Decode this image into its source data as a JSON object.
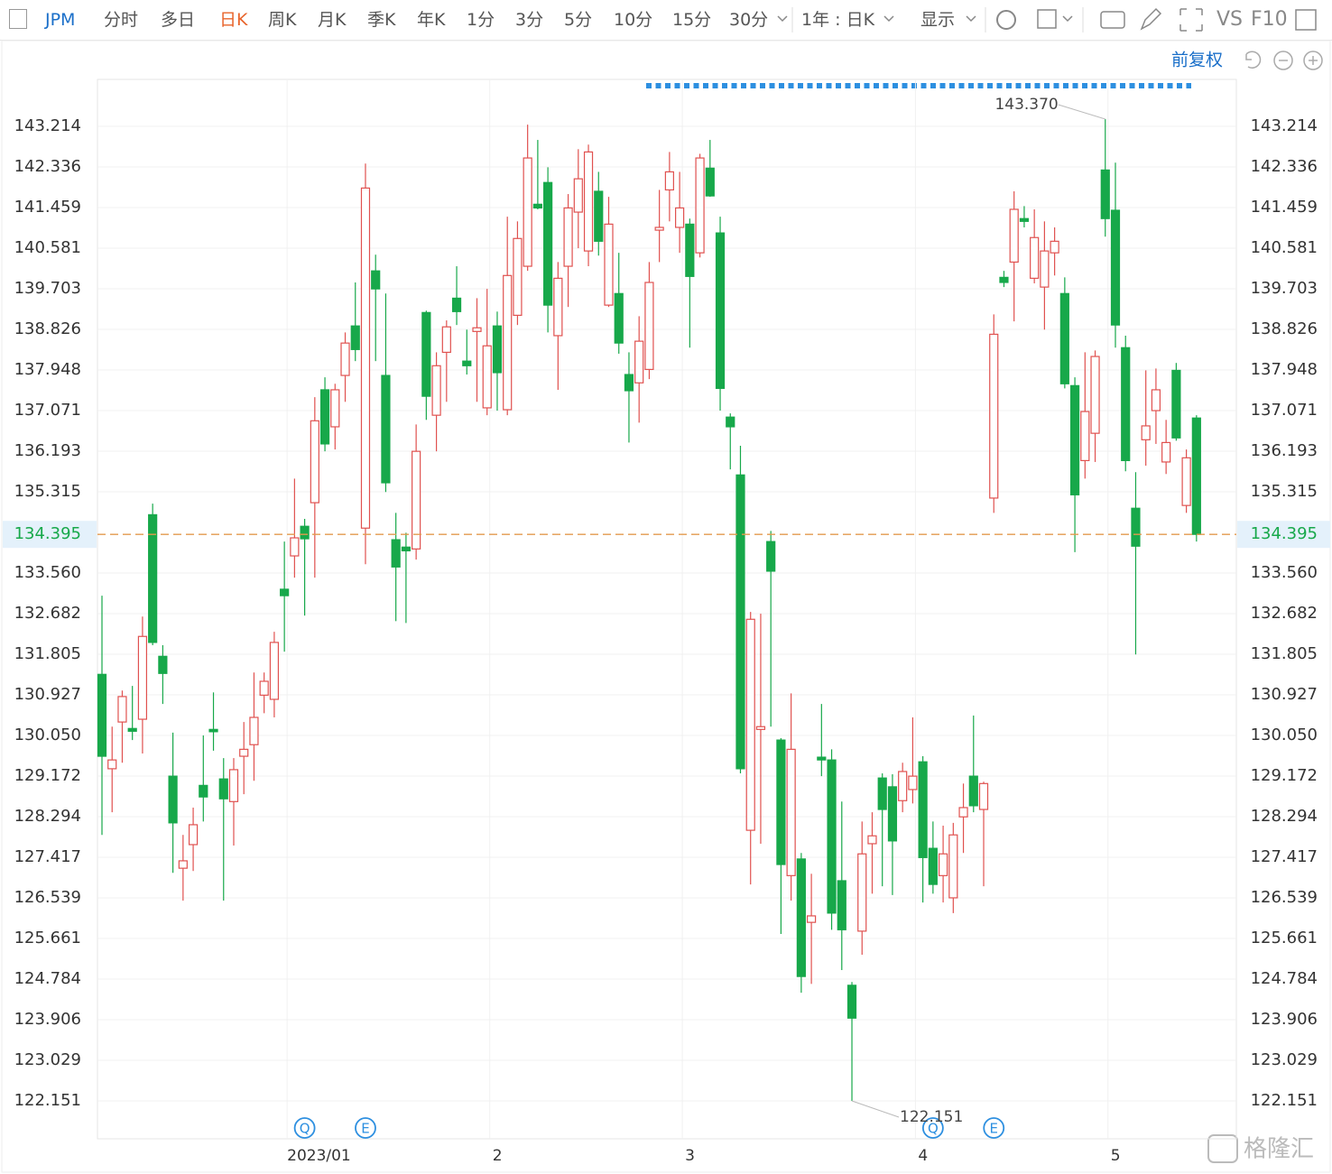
{
  "toolbar": {
    "symbol": "JPM",
    "periods": [
      "分时",
      "多日",
      "日K",
      "周K",
      "月K",
      "季K",
      "年K",
      "1分",
      "3分",
      "5分",
      "10分",
      "15分",
      "30分"
    ],
    "active_period_index": 2,
    "range": "1年 : 日K",
    "display": "显示",
    "compare": "VS",
    "f10": "F10"
  },
  "adjust": "前复权",
  "watermark": "格隆汇",
  "chart_data": {
    "type": "candlestick",
    "categories": [
      null,
      null,
      null,
      null,
      null,
      null,
      null,
      null,
      null,
      null,
      null,
      null,
      null,
      null,
      null,
      null,
      null,
      null,
      "2023/01",
      null,
      null,
      null,
      null,
      null,
      null,
      null,
      null,
      null,
      null,
      null,
      null,
      null,
      null,
      null,
      null,
      null,
      null,
      null,
      "2",
      null,
      null,
      null,
      null,
      null,
      null,
      null,
      null,
      null,
      null,
      null,
      null,
      null,
      null,
      null,
      null,
      null,
      null,
      "3",
      null,
      null,
      null,
      null,
      null,
      null,
      null,
      null,
      null,
      null,
      null,
      null,
      null,
      null,
      null,
      null,
      null,
      null,
      null,
      null,
      null,
      null,
      "4",
      null,
      null,
      null,
      null,
      null,
      null,
      null,
      null,
      null,
      null,
      null,
      null,
      null,
      null,
      null,
      null,
      null,
      null,
      "5",
      null,
      null,
      null,
      null,
      null,
      null,
      null,
      null,
      null
    ],
    "events": [
      null,
      null,
      null,
      null,
      null,
      null,
      null,
      null,
      null,
      null,
      null,
      null,
      null,
      null,
      null,
      null,
      null,
      null,
      null,
      null,
      "Q",
      null,
      null,
      null,
      null,
      null,
      "E",
      null,
      null,
      null,
      null,
      null,
      null,
      null,
      null,
      null,
      null,
      null,
      null,
      null,
      null,
      null,
      null,
      null,
      null,
      null,
      null,
      null,
      null,
      null,
      null,
      null,
      null,
      null,
      null,
      null,
      null,
      null,
      null,
      null,
      null,
      null,
      null,
      null,
      null,
      null,
      null,
      null,
      null,
      null,
      null,
      null,
      null,
      null,
      null,
      null,
      null,
      null,
      null,
      null,
      null,
      null,
      "Q",
      null,
      null,
      null,
      null,
      null,
      "E",
      null,
      null,
      null,
      null,
      null,
      null,
      null,
      null,
      null,
      null,
      null,
      null,
      null,
      null,
      null,
      null,
      null,
      null,
      null,
      null
    ],
    "ohlc": [
      [
        131.37,
        133.07,
        127.9,
        129.6
      ],
      [
        129.33,
        130.24,
        128.39,
        129.52
      ],
      [
        130.34,
        131.02,
        129.46,
        130.89
      ],
      [
        130.2,
        131.12,
        129.95,
        130.14
      ],
      [
        130.4,
        132.62,
        129.66,
        132.19
      ],
      [
        134.82,
        135.06,
        132.0,
        132.06
      ],
      [
        131.76,
        132.0,
        130.73,
        131.39
      ],
      [
        129.17,
        130.11,
        127.08,
        128.16
      ],
      [
        127.18,
        127.9,
        126.48,
        127.34
      ],
      [
        127.69,
        128.49,
        127.12,
        128.12
      ],
      [
        128.97,
        130.05,
        128.19,
        128.72
      ],
      [
        130.18,
        130.98,
        129.72,
        130.13
      ],
      [
        129.11,
        129.56,
        126.48,
        128.68
      ],
      [
        128.62,
        129.56,
        127.67,
        129.31
      ],
      [
        129.6,
        130.34,
        128.78,
        129.75
      ],
      [
        129.85,
        131.41,
        129.07,
        130.44
      ],
      [
        130.92,
        131.41,
        130.53,
        131.22
      ],
      [
        130.83,
        132.29,
        130.44,
        132.06
      ],
      [
        133.21,
        134.24,
        131.86,
        133.07
      ],
      [
        133.93,
        135.6,
        133.46,
        134.32
      ],
      [
        134.57,
        134.73,
        132.64,
        134.3
      ],
      [
        135.08,
        137.36,
        133.46,
        136.85
      ],
      [
        137.52,
        137.79,
        136.19,
        136.35
      ],
      [
        136.72,
        137.65,
        136.23,
        137.52
      ],
      [
        137.83,
        138.76,
        137.26,
        138.53
      ],
      [
        138.9,
        139.84,
        138.14,
        138.39
      ],
      [
        134.53,
        142.41,
        133.75,
        141.88
      ],
      [
        140.09,
        140.44,
        138.14,
        139.7
      ],
      [
        137.83,
        139.6,
        135.31,
        135.51
      ],
      [
        134.28,
        134.86,
        132.52,
        133.69
      ],
      [
        134.12,
        134.43,
        132.48,
        134.04
      ],
      [
        134.08,
        136.77,
        133.85,
        136.19
      ],
      [
        139.19,
        139.23,
        136.87,
        137.38
      ],
      [
        136.97,
        138.33,
        136.19,
        138.04
      ],
      [
        138.33,
        139.02,
        137.26,
        138.88
      ],
      [
        139.5,
        140.19,
        138.92,
        139.21
      ],
      [
        138.14,
        138.82,
        137.85,
        138.04
      ],
      [
        138.78,
        139.5,
        137.26,
        138.86
      ],
      [
        137.13,
        139.7,
        136.97,
        138.47
      ],
      [
        138.9,
        139.21,
        137.07,
        137.89
      ],
      [
        137.09,
        141.26,
        136.97,
        139.99
      ],
      [
        139.13,
        141.16,
        138.92,
        140.79
      ],
      [
        140.19,
        143.25,
        140.09,
        142.53
      ],
      [
        141.53,
        142.92,
        141.42,
        141.45
      ],
      [
        142.0,
        142.33,
        138.76,
        139.35
      ],
      [
        138.69,
        140.28,
        137.52,
        139.93
      ],
      [
        140.19,
        141.75,
        139.31,
        141.45
      ],
      [
        141.36,
        142.72,
        140.58,
        142.08
      ],
      [
        140.52,
        142.82,
        140.19,
        142.66
      ],
      [
        141.81,
        142.23,
        140.42,
        140.73
      ],
      [
        139.35,
        141.69,
        139.31,
        141.1
      ],
      [
        139.6,
        140.48,
        138.3,
        138.53
      ],
      [
        137.85,
        138.33,
        136.38,
        137.5
      ],
      [
        137.67,
        139.11,
        136.81,
        138.57
      ],
      [
        137.96,
        140.28,
        137.75,
        139.84
      ],
      [
        140.97,
        141.84,
        140.28,
        141.03
      ],
      [
        141.84,
        142.66,
        141.16,
        142.23
      ],
      [
        141.03,
        142.23,
        140.48,
        141.45
      ],
      [
        141.1,
        141.22,
        138.43,
        139.97
      ],
      [
        140.48,
        142.62,
        140.38,
        142.53
      ],
      [
        142.31,
        142.92,
        141.69,
        141.71
      ],
      [
        140.91,
        141.26,
        137.07,
        137.55
      ],
      [
        136.93,
        137.01,
        135.8,
        136.72
      ],
      [
        135.68,
        136.31,
        129.23,
        129.33
      ],
      [
        128.0,
        132.72,
        126.83,
        132.56
      ],
      [
        130.18,
        132.68,
        127.71,
        130.24
      ],
      [
        134.24,
        134.47,
        130.24,
        133.6
      ],
      [
        129.95,
        129.99,
        125.76,
        127.26
      ],
      [
        127.02,
        130.96,
        126.48,
        129.75
      ],
      [
        127.38,
        127.51,
        124.49,
        124.84
      ],
      [
        126.01,
        127.06,
        124.68,
        126.15
      ],
      [
        129.58,
        130.73,
        129.17,
        129.52
      ],
      [
        129.52,
        129.75,
        125.85,
        126.21
      ],
      [
        126.91,
        128.62,
        124.98,
        125.85
      ],
      [
        124.65,
        124.72,
        122.151,
        123.94
      ],
      [
        125.82,
        128.19,
        125.31,
        127.49
      ],
      [
        127.71,
        128.39,
        126.63,
        127.88
      ],
      [
        129.13,
        129.23,
        126.79,
        128.45
      ],
      [
        128.94,
        129.21,
        126.6,
        127.77
      ],
      [
        128.64,
        129.46,
        128.39,
        129.27
      ],
      [
        128.88,
        130.44,
        128.58,
        129.17
      ],
      [
        129.48,
        129.6,
        126.44,
        127.41
      ],
      [
        127.61,
        128.19,
        126.63,
        126.83
      ],
      [
        127.02,
        128.1,
        126.44,
        127.49
      ],
      [
        126.54,
        128.16,
        126.21,
        127.9
      ],
      [
        128.29,
        129.01,
        127.51,
        128.49
      ],
      [
        129.17,
        130.48,
        128.39,
        128.53
      ],
      [
        128.45,
        129.05,
        126.79,
        129.01
      ],
      [
        135.18,
        139.15,
        134.86,
        138.72
      ],
      [
        139.95,
        140.09,
        139.74,
        139.84
      ],
      [
        140.28,
        141.81,
        139.0,
        141.42
      ],
      [
        141.22,
        141.49,
        141.03,
        141.16
      ],
      [
        139.93,
        141.42,
        139.82,
        140.81
      ],
      [
        139.74,
        141.16,
        138.82,
        140.52
      ],
      [
        140.48,
        141.03,
        139.99,
        140.73
      ],
      [
        139.6,
        139.95,
        137.55,
        137.65
      ],
      [
        137.61,
        137.79,
        134.01,
        135.25
      ],
      [
        135.99,
        138.33,
        135.6,
        137.05
      ],
      [
        136.58,
        138.37,
        135.96,
        138.24
      ],
      [
        142.27,
        143.37,
        140.83,
        141.22
      ],
      [
        141.4,
        142.43,
        138.43,
        138.92
      ],
      [
        138.43,
        138.69,
        135.76,
        135.99
      ],
      [
        134.96,
        135.74,
        131.8,
        134.14
      ],
      [
        136.44,
        137.94,
        135.88,
        136.74
      ],
      [
        137.07,
        137.98,
        136.35,
        137.52
      ],
      [
        135.96,
        136.87,
        135.7,
        136.38
      ],
      [
        137.94,
        138.1,
        136.42,
        136.48
      ],
      [
        135.02,
        136.23,
        134.86,
        136.05
      ],
      [
        136.91,
        136.97,
        134.24,
        134.395
      ]
    ],
    "up_color": "#e0514f",
    "down_color": "#17a84a",
    "max_label": "143.370",
    "min_label": "122.151",
    "last_price": 134.395,
    "last_price_color": "#e39a4e",
    "ylim": [
      121.332,
      144.228
    ],
    "yticks": [
      143.214,
      142.336,
      141.459,
      140.581,
      139.703,
      138.826,
      137.948,
      137.071,
      136.193,
      135.315,
      {
        "value": 133.56,
        "label": "133.560"
      },
      132.682,
      131.805,
      130.927,
      {
        "value": 130.05,
        "label": "130.050"
      },
      129.172,
      128.294,
      127.417,
      126.539,
      125.661,
      124.784,
      123.906,
      123.029,
      122.151
    ],
    "grid": true
  }
}
